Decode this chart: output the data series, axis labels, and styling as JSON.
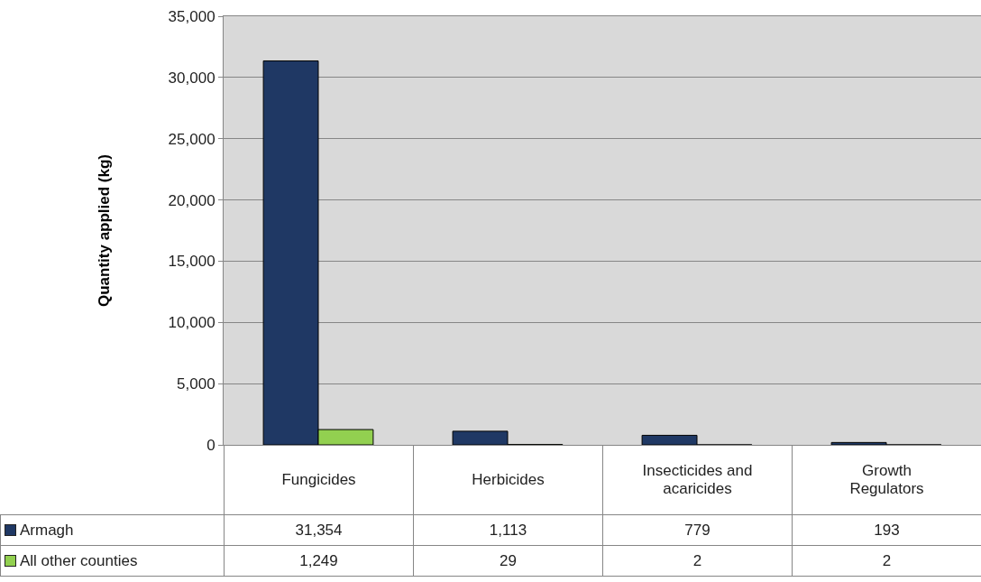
{
  "chart_data": {
    "type": "bar",
    "ylabel": "Quantity applied (kg)",
    "categories": [
      "Fungicides",
      "Herbicides",
      "Insecticides and acaricides",
      "Growth Regulators"
    ],
    "series": [
      {
        "name": "Armagh",
        "color": "#1f3864",
        "values": [
          31354,
          1113,
          779,
          193
        ],
        "value_labels": [
          "31,354",
          "1,113",
          "779",
          "193"
        ]
      },
      {
        "name": "All other counties",
        "color": "#92d050",
        "values": [
          1249,
          29,
          2,
          2
        ],
        "value_labels": [
          "1,249",
          "29",
          "2",
          "2"
        ]
      }
    ],
    "ylim": [
      0,
      35000
    ],
    "yticks": [
      {
        "value": 0,
        "label": "0"
      },
      {
        "value": 5000,
        "label": "5,000"
      },
      {
        "value": 10000,
        "label": "10,000"
      },
      {
        "value": 15000,
        "label": "15,000"
      },
      {
        "value": 20000,
        "label": "20,000"
      },
      {
        "value": 25000,
        "label": "25,000"
      },
      {
        "value": 30000,
        "label": "30,000"
      },
      {
        "value": 35000,
        "label": "35,000"
      }
    ],
    "grid": "y",
    "legend": "bottom"
  }
}
